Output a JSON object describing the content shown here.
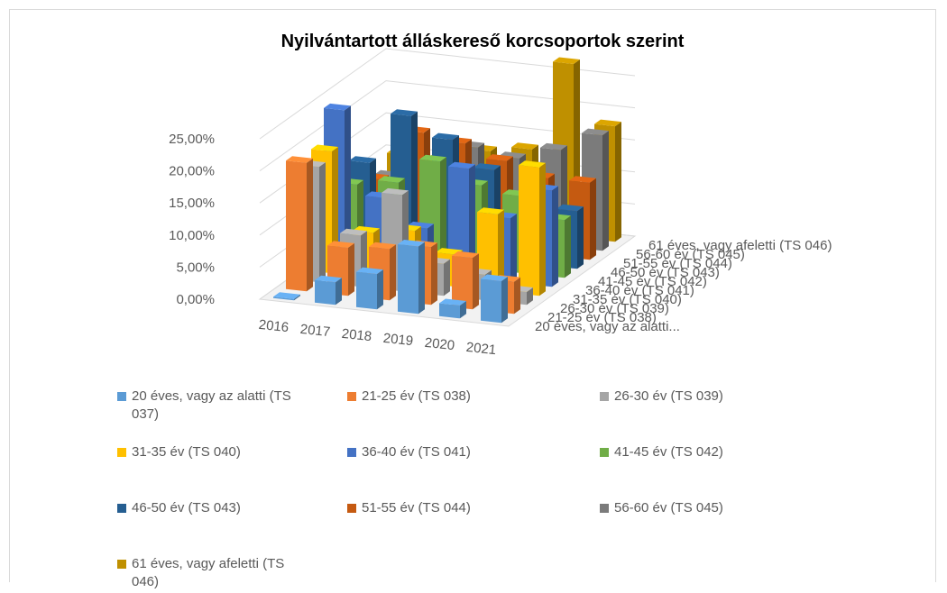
{
  "chart_data": {
    "type": "bar3d",
    "title": "Nyilvántartott álláskereső korcsoportok szerint",
    "categories": [
      "2016",
      "2017",
      "2018",
      "2019",
      "2020",
      "2021"
    ],
    "depth_labels": [
      "20 éves, vagy az alatti...",
      "21-25 év (TS 038)",
      "26-30 év (TS 039)",
      "31-35 év (TS 040)",
      "36-40 év (TS 041)",
      "41-45 év (TS 042)",
      "46-50 év (TS 043)",
      "51-55 év (TS 044)",
      "56-60 év (TS 045)",
      "61 éves, vagy afeletti (TS 046)"
    ],
    "series": [
      {
        "name": "20 éves, vagy az alatti (TS 037)",
        "color": "#5b9bd5",
        "values": [
          0.2,
          3.5,
          5.5,
          10.5,
          2,
          6.5
        ]
      },
      {
        "name": "21-25 év (TS 038)",
        "color": "#ed7d31",
        "values": [
          20,
          7.5,
          8,
          9,
          8,
          5
        ]
      },
      {
        "name": "26-30 év (TS 039)",
        "color": "#a5a5a5",
        "values": [
          18,
          8,
          15,
          5,
          4,
          2
        ]
      },
      {
        "name": "31-35 év (TS 040)",
        "color": "#ffc000",
        "values": [
          19,
          7,
          8,
          5,
          12,
          20
        ]
      },
      {
        "name": "36-40 év (TS 041)",
        "color": "#4472c4",
        "values": [
          24,
          11,
          7,
          17,
          10,
          15
        ]
      },
      {
        "name": "41-45 év (TS 042)",
        "color": "#70ad47",
        "values": [
          11,
          12,
          16,
          13,
          12,
          9
        ]
      },
      {
        "name": "46-50 év (TS 043)",
        "color": "#255e91",
        "values": [
          13,
          21,
          18,
          14,
          10,
          9
        ]
      },
      {
        "name": "51-55 év (TS 044)",
        "color": "#c55a11",
        "values": [
          9,
          17,
          16,
          14,
          12,
          12
        ]
      },
      {
        "name": "56-60 év (TS 045)",
        "color": "#7b7b7b",
        "values": [
          8,
          10,
          14,
          13,
          15,
          18
        ]
      },
      {
        "name": "61 éves, vagy afeletti (TS 046)",
        "color": "#bf9000",
        "values": [
          10,
          10,
          12,
          13,
          27,
          18
        ]
      }
    ],
    "ylim": [
      0,
      25
    ],
    "yticks": [
      {
        "value": 0,
        "label": "0,00%"
      },
      {
        "value": 5,
        "label": "5,00%"
      },
      {
        "value": 10,
        "label": "10,00%"
      },
      {
        "value": 15,
        "label": "15,00%"
      },
      {
        "value": 20,
        "label": "20,00%"
      },
      {
        "value": 25,
        "label": "25,00%"
      }
    ],
    "grid": true
  }
}
